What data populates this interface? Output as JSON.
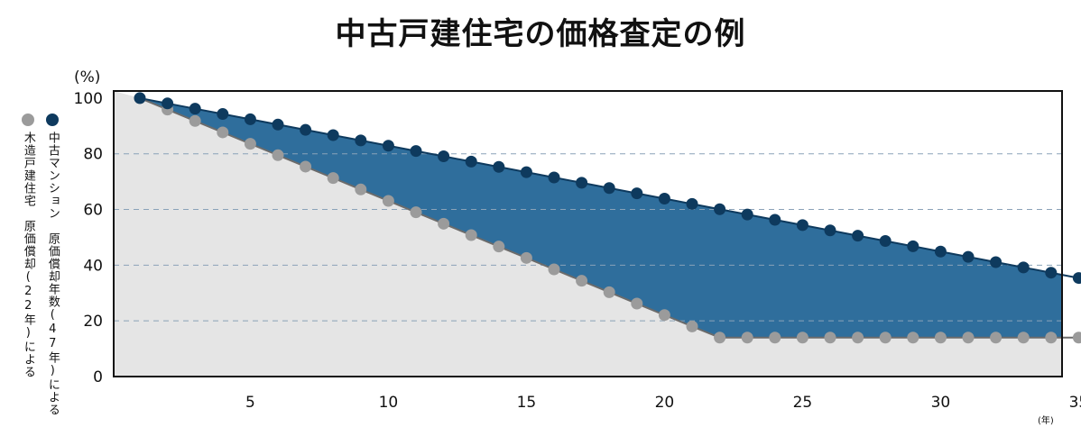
{
  "title": "中古戸建住宅の価格査定の例",
  "y_unit": "(%)",
  "x_unit": "(年)",
  "colors": {
    "condo_line": "#0e3a5e",
    "condo_fill": "#2f6e9c",
    "wood_dot": "#9b9b9b",
    "wood_fill": "#e5e5e5",
    "frame": "#111111",
    "grid": "#8aa2b8"
  },
  "legend": [
    {
      "label": "中古マンション　原価償却年数(47年)による",
      "color": "#0e3a5e"
    },
    {
      "label": "木造戸建住宅　原価償却(22年)による",
      "color": "#9b9b9b"
    }
  ],
  "chart_data": {
    "type": "area",
    "title": "中古戸建住宅の価格査定の例",
    "ylabel": "(%)",
    "xlabel": "(年)",
    "xlim": [
      0,
      35
    ],
    "ylim": [
      0,
      100
    ],
    "x_ticks": [
      5,
      10,
      15,
      20,
      25,
      30,
      35
    ],
    "y_ticks": [
      0,
      20,
      40,
      60,
      80,
      100
    ],
    "grid": "dashed horizontal at 20, 40, 60, 80",
    "series": [
      {
        "name": "中古マンション　原価償却年数(47年)による",
        "x": [
          1,
          2,
          3,
          4,
          5,
          6,
          7,
          8,
          9,
          10,
          11,
          12,
          13,
          14,
          15,
          16,
          17,
          18,
          19,
          20,
          21,
          22,
          23,
          24,
          25,
          26,
          27,
          28,
          29,
          30,
          31,
          32,
          33,
          34,
          35
        ],
        "values": [
          100,
          98.1,
          96.2,
          94.3,
          92.4,
          90.5,
          88.6,
          86.7,
          84.8,
          82.9,
          81.0,
          79.1,
          77.2,
          75.3,
          73.4,
          71.5,
          69.6,
          67.7,
          65.8,
          63.9,
          62.0,
          60.1,
          58.2,
          56.3,
          54.4,
          52.5,
          50.6,
          48.7,
          46.8,
          44.9,
          43.0,
          41.1,
          39.2,
          37.3,
          35.4
        ]
      },
      {
        "name": "木造戸建住宅　原価償却(22年)による",
        "x": [
          1,
          2,
          3,
          4,
          5,
          6,
          7,
          8,
          9,
          10,
          11,
          12,
          13,
          14,
          15,
          16,
          17,
          18,
          19,
          20,
          21,
          22,
          23,
          24,
          25,
          26,
          27,
          28,
          29,
          30,
          31,
          32,
          33,
          34,
          35
        ],
        "values": [
          100,
          95.9,
          91.8,
          87.7,
          83.6,
          79.5,
          75.4,
          71.3,
          67.2,
          63.1,
          59.0,
          54.9,
          50.8,
          46.7,
          42.6,
          38.5,
          34.4,
          30.3,
          26.2,
          22.1,
          18.0,
          14.0,
          14.0,
          14.0,
          14.0,
          14.0,
          14.0,
          14.0,
          14.0,
          14.0,
          14.0,
          14.0,
          14.0,
          14.0,
          14.0
        ]
      }
    ]
  }
}
